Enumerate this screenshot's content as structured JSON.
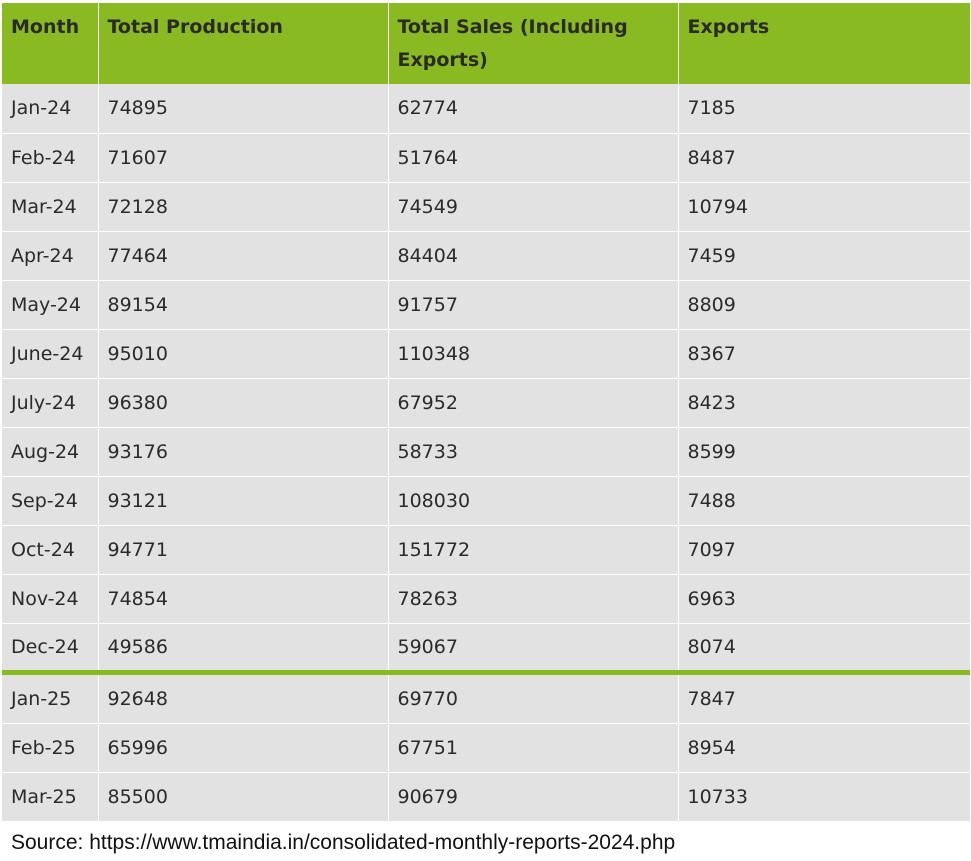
{
  "table": {
    "headers": [
      "Month",
      "Total Production",
      "Total Sales (Including Exports)",
      "Exports"
    ],
    "rows_2024": [
      [
        "Jan-24",
        "74895",
        "62774",
        "7185"
      ],
      [
        "Feb-24",
        "71607",
        "51764",
        "8487"
      ],
      [
        "Mar-24",
        "72128",
        "74549",
        "10794"
      ],
      [
        "Apr-24",
        "77464",
        "84404",
        "7459"
      ],
      [
        "May-24",
        "89154",
        "91757",
        "8809"
      ],
      [
        "June-24",
        "95010",
        "110348",
        "8367"
      ],
      [
        "July-24",
        "96380",
        "67952",
        "8423"
      ],
      [
        "Aug-24",
        "93176",
        "58733",
        "8599"
      ],
      [
        "Sep-24",
        "93121",
        "108030",
        "7488"
      ],
      [
        "Oct-24",
        "94771",
        "151772",
        "7097"
      ],
      [
        "Nov-24",
        "74854",
        "78263",
        "6963"
      ],
      [
        "Dec-24",
        "49586",
        "59067",
        "8074"
      ]
    ],
    "rows_2025": [
      [
        "Jan-25",
        "92648",
        "69770",
        "7847"
      ],
      [
        "Feb-25",
        "65996",
        "67751",
        "8954"
      ],
      [
        "Mar-25",
        "85500",
        "90679",
        "10733"
      ]
    ],
    "header_color": "#8aba21",
    "row_color": "#e2e2e2"
  },
  "source": "Source: https://www.tmaindia.in/consolidated-monthly-reports-2024.php"
}
